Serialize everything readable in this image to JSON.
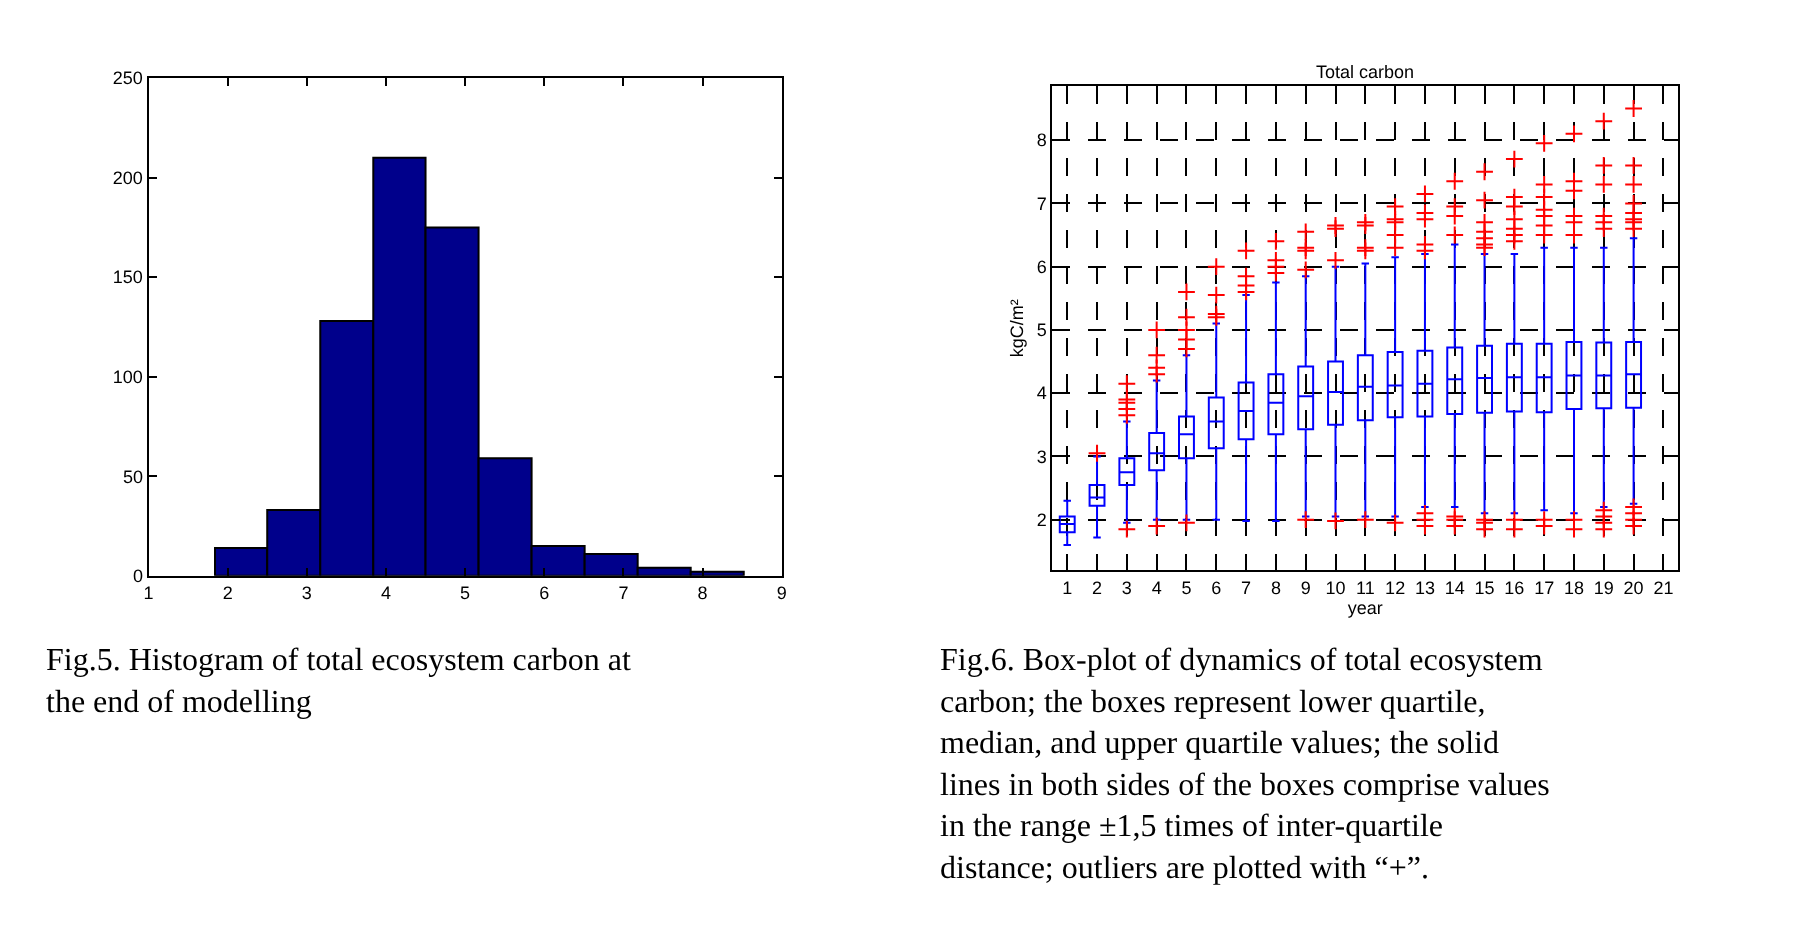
{
  "chart_data": [
    {
      "type": "histogram",
      "bins": [
        1.84,
        2.5,
        3.17,
        3.84,
        4.5,
        5.17,
        5.84,
        6.51,
        7.18,
        7.85,
        8.52
      ],
      "values": [
        14,
        33,
        128,
        210,
        175,
        59,
        15,
        11,
        4,
        2
      ],
      "color": "#00008b",
      "xlim": [
        1,
        9
      ],
      "xticks": [
        1,
        2,
        3,
        4,
        5,
        6,
        7,
        8,
        9
      ],
      "ylim": [
        0,
        250
      ],
      "yticks": [
        0,
        50,
        100,
        150,
        200,
        250
      ],
      "grid": false,
      "annotations": [
        "Fig.5. Histogram of total ecosystem carbon at the end of modelling"
      ]
    },
    {
      "type": "box",
      "title": "Total carbon",
      "xlabel": "year",
      "ylabel": "kgC/m²",
      "x": [
        1,
        2,
        3,
        4,
        5,
        6,
        7,
        8,
        9,
        10,
        11,
        12,
        13,
        14,
        15,
        16,
        17,
        18,
        19,
        20
      ],
      "marker": "cross",
      "grid": true,
      "xlim": [
        0.5,
        21.5
      ],
      "xticks": [
        1,
        2,
        3,
        4,
        5,
        6,
        7,
        8,
        9,
        10,
        11,
        12,
        13,
        14,
        15,
        16,
        17,
        18,
        19,
        20,
        21
      ],
      "ylim": [
        1.2,
        8.85
      ],
      "yticks": [
        2,
        3,
        4,
        5,
        6,
        7,
        8
      ],
      "series": [
        {
          "color": "#0000ff",
          "boxes": [
            {
              "low": 1.6,
              "q1": 1.8,
              "median": 1.93,
              "q3": 2.05,
              "high": 2.3
            },
            {
              "low": 1.72,
              "q1": 2.22,
              "median": 2.35,
              "q3": 2.55,
              "high": 3.0,
              "outliers": [
                3.05
              ]
            },
            {
              "low": 1.95,
              "q1": 2.55,
              "median": 2.75,
              "q3": 2.97,
              "high": 3.55,
              "outliers": [
                1.85,
                3.65,
                3.75,
                3.85,
                3.9,
                4.15
              ]
            },
            {
              "low": 2.0,
              "q1": 2.78,
              "median": 3.05,
              "q3": 3.37,
              "high": 4.2,
              "outliers": [
                1.9,
                4.3,
                4.4,
                4.6,
                5.0
              ]
            },
            {
              "low": 2.0,
              "q1": 2.97,
              "median": 3.35,
              "q3": 3.63,
              "high": 4.6,
              "outliers": [
                1.95,
                4.7,
                4.85,
                5.0,
                5.2,
                5.6
              ]
            },
            {
              "low": 2.0,
              "q1": 3.13,
              "median": 3.55,
              "q3": 3.93,
              "high": 5.1,
              "outliers": [
                5.2,
                5.25,
                5.55,
                6.0
              ]
            },
            {
              "low": 1.98,
              "q1": 3.27,
              "median": 3.72,
              "q3": 4.17,
              "high": 5.55,
              "outliers": [
                5.6,
                5.7,
                5.85,
                6.25
              ]
            },
            {
              "low": 1.98,
              "q1": 3.35,
              "median": 3.85,
              "q3": 4.3,
              "high": 5.75,
              "outliers": [
                5.9,
                6.0,
                6.1,
                6.4
              ]
            },
            {
              "low": 2.05,
              "q1": 3.43,
              "median": 3.95,
              "q3": 4.42,
              "high": 5.85,
              "outliers": [
                2.0,
                5.95,
                6.25,
                6.3,
                6.55
              ]
            },
            {
              "low": 2.05,
              "q1": 3.5,
              "median": 4.02,
              "q3": 4.5,
              "high": 6.0,
              "outliers": [
                1.98,
                6.1,
                6.6,
                6.65
              ]
            },
            {
              "low": 2.05,
              "q1": 3.57,
              "median": 4.1,
              "q3": 4.6,
              "high": 6.05,
              "outliers": [
                2.0,
                6.25,
                6.3,
                6.65,
                6.7
              ]
            },
            {
              "low": 2.05,
              "q1": 3.62,
              "median": 4.12,
              "q3": 4.65,
              "high": 6.15,
              "outliers": [
                1.95,
                6.3,
                6.5,
                6.7,
                6.75,
                6.95
              ]
            },
            {
              "low": 2.2,
              "q1": 3.63,
              "median": 4.15,
              "q3": 4.67,
              "high": 6.2,
              "outliers": [
                1.9,
                2.0,
                2.1,
                6.25,
                6.35,
                6.75,
                6.85,
                7.15
              ]
            },
            {
              "low": 2.2,
              "q1": 3.67,
              "median": 4.22,
              "q3": 4.72,
              "high": 6.35,
              "outliers": [
                1.9,
                2.0,
                2.05,
                6.5,
                6.8,
                6.95,
                7.35
              ]
            },
            {
              "low": 2.1,
              "q1": 3.69,
              "median": 4.24,
              "q3": 4.75,
              "high": 6.2,
              "outliers": [
                1.85,
                1.95,
                2.0,
                6.3,
                6.35,
                6.45,
                6.55,
                6.7,
                7.05,
                7.5
              ]
            },
            {
              "low": 2.1,
              "q1": 3.71,
              "median": 4.25,
              "q3": 4.78,
              "high": 6.2,
              "outliers": [
                1.85,
                2.0,
                6.4,
                6.5,
                6.6,
                6.75,
                6.95,
                7.1,
                7.7
              ]
            },
            {
              "low": 2.15,
              "q1": 3.7,
              "median": 4.25,
              "q3": 4.78,
              "high": 6.3,
              "outliers": [
                1.9,
                2.0,
                6.5,
                6.65,
                6.8,
                6.9,
                7.1,
                7.3,
                7.95
              ]
            },
            {
              "low": 2.1,
              "q1": 3.75,
              "median": 4.28,
              "q3": 4.81,
              "high": 6.3,
              "outliers": [
                1.85,
                2.0,
                6.5,
                6.7,
                6.8,
                7.2,
                7.35,
                8.1
              ]
            },
            {
              "low": 2.2,
              "q1": 3.76,
              "median": 4.28,
              "q3": 4.8,
              "high": 6.3,
              "outliers": [
                1.85,
                1.95,
                2.05,
                2.15,
                6.6,
                6.7,
                6.8,
                7.3,
                7.6,
                8.3
              ]
            },
            {
              "low": 2.25,
              "q1": 3.77,
              "median": 4.3,
              "q3": 4.81,
              "high": 6.45,
              "outliers": [
                1.9,
                2.0,
                2.1,
                2.2,
                6.6,
                6.7,
                6.75,
                6.85,
                7.0,
                7.3,
                7.6,
                8.5
              ]
            }
          ]
        }
      ],
      "annotations": [
        "Fig.6. Box-plot of dynamics of total ecosystem carbon; the boxes represent lower quartile, median, and upper quartile values; the solid lines in both sides of the boxes comprise values in the range ±1,5 times of inter-quartile distance; outliers are plotted with “+”."
      ]
    }
  ]
}
